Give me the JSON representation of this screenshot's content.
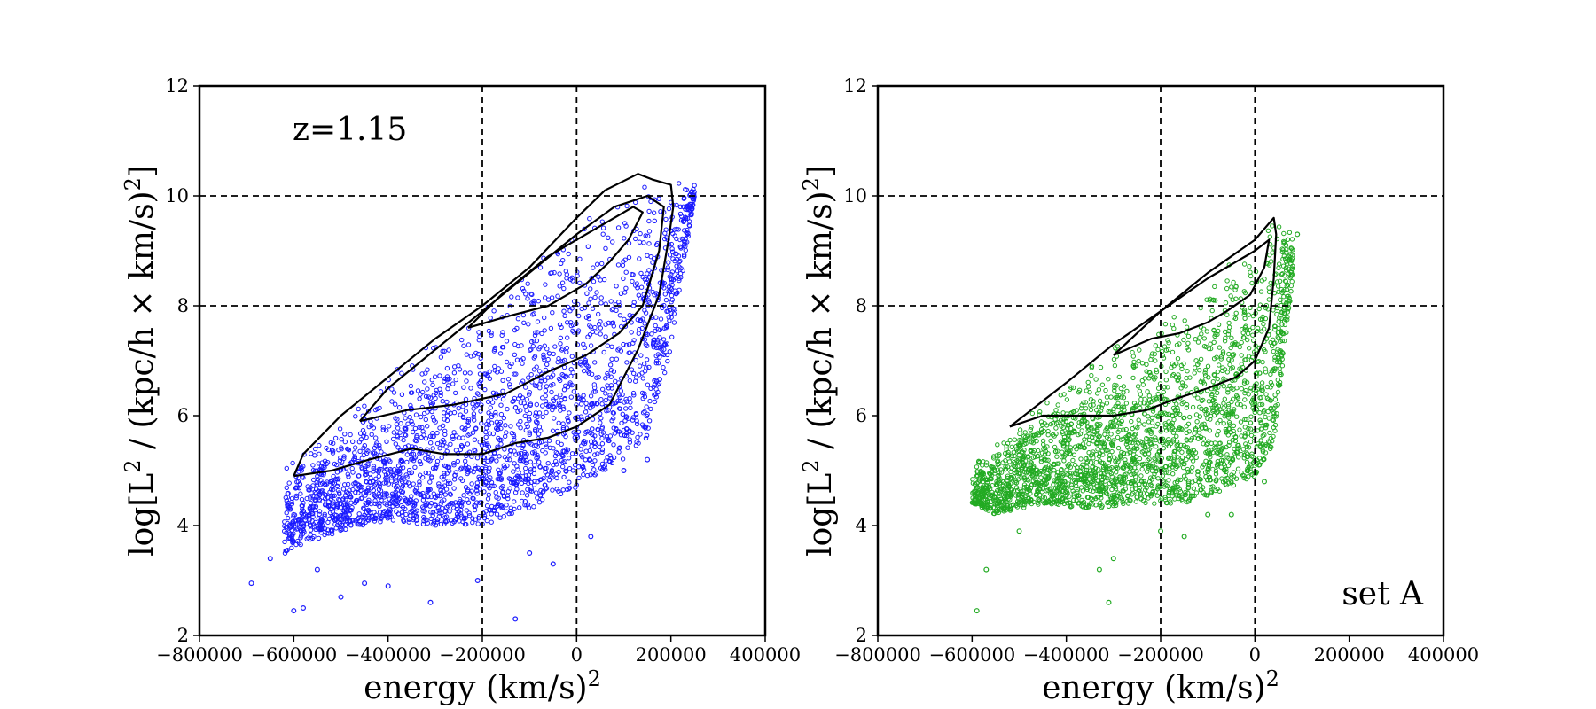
{
  "chart_data": [
    {
      "type": "scatter",
      "annotation": "z=1.15",
      "xlabel": "energy   (km/s)",
      "xlabel_sup": "2",
      "ylabel_pre": "log[L",
      "ylabel_sup1": "2",
      "ylabel_mid": " / (kpc/h × km/s)",
      "ylabel_sup2": "2",
      "ylabel_post": "]",
      "xlim": [
        -800000,
        400000
      ],
      "ylim": [
        2,
        12
      ],
      "xticks": [
        -800000,
        -600000,
        -400000,
        -200000,
        0,
        200000,
        400000
      ],
      "xtick_labels": [
        "−800000",
        "−600000",
        "−400000",
        "−200000",
        "0",
        "200000",
        "400000"
      ],
      "yticks": [
        2,
        4,
        6,
        8,
        10,
        12
      ],
      "ytick_labels": [
        "2",
        "4",
        "6",
        "8",
        "10",
        "12"
      ],
      "reference_lines": {
        "vertical": [
          -200000,
          0
        ],
        "horizontal": [
          8,
          10
        ]
      },
      "series": [
        {
          "name": "particles",
          "color": "#1a1aff",
          "envelope": {
            "upper": [
              [
                -620000,
                5.2
              ],
              [
                -500000,
                6.0
              ],
              [
                -400000,
                6.8
              ],
              [
                -300000,
                7.4
              ],
              [
                -200000,
                8.0
              ],
              [
                -100000,
                8.7
              ],
              [
                0,
                9.6
              ],
              [
                100000,
                10.1
              ],
              [
                150000,
                10.4
              ],
              [
                200000,
                10.3
              ],
              [
                250000,
                10.2
              ]
            ],
            "lower": [
              [
                -690000,
                2.9
              ],
              [
                -600000,
                3.6
              ],
              [
                -500000,
                3.9
              ],
              [
                -400000,
                4.1
              ],
              [
                -300000,
                4.0
              ],
              [
                -200000,
                4.0
              ],
              [
                -100000,
                4.3
              ],
              [
                0,
                4.7
              ],
              [
                100000,
                5.2
              ],
              [
                150000,
                5.6
              ],
              [
                200000,
                7.2
              ],
              [
                250000,
                10.0
              ]
            ]
          },
          "outliers": [
            [
              -690000,
              2.95
            ],
            [
              -650000,
              3.4
            ],
            [
              -600000,
              2.45
            ],
            [
              -580000,
              2.5
            ],
            [
              -550000,
              3.2
            ],
            [
              -500000,
              2.7
            ],
            [
              -450000,
              2.95
            ],
            [
              -400000,
              2.9
            ],
            [
              -310000,
              2.6
            ],
            [
              -210000,
              3.0
            ],
            [
              -130000,
              2.3
            ],
            [
              -100000,
              3.5
            ],
            [
              -50000,
              3.3
            ],
            [
              30000,
              3.8
            ],
            [
              100000,
              5.0
            ],
            [
              150000,
              5.2
            ]
          ]
        }
      ],
      "contours": [
        [
          [
            -600000,
            4.9
          ],
          [
            -520000,
            5.0
          ],
          [
            -440000,
            5.2
          ],
          [
            -350000,
            5.4
          ],
          [
            -280000,
            5.3
          ],
          [
            -200000,
            5.3
          ],
          [
            -130000,
            5.5
          ],
          [
            -60000,
            5.6
          ],
          [
            0,
            5.8
          ],
          [
            70000,
            6.2
          ],
          [
            130000,
            7.2
          ],
          [
            175000,
            8.2
          ],
          [
            195000,
            9.2
          ],
          [
            205000,
            9.8
          ],
          [
            200000,
            10.2
          ],
          [
            160000,
            10.3
          ],
          [
            130000,
            10.4
          ],
          [
            60000,
            10.1
          ],
          [
            0,
            9.6
          ],
          [
            -100000,
            8.7
          ],
          [
            -200000,
            8.0
          ],
          [
            -300000,
            7.4
          ],
          [
            -400000,
            6.7
          ],
          [
            -500000,
            6.0
          ],
          [
            -580000,
            5.3
          ],
          [
            -600000,
            4.9
          ]
        ],
        [
          [
            -460000,
            5.9
          ],
          [
            -360000,
            6.1
          ],
          [
            -260000,
            6.2
          ],
          [
            -150000,
            6.4
          ],
          [
            -60000,
            6.8
          ],
          [
            20000,
            7.1
          ],
          [
            90000,
            7.5
          ],
          [
            140000,
            8.0
          ],
          [
            175000,
            9.0
          ],
          [
            185000,
            9.8
          ],
          [
            150000,
            10.0
          ],
          [
            80000,
            9.8
          ],
          [
            0,
            9.3
          ],
          [
            -100000,
            8.6
          ],
          [
            -200000,
            7.9
          ],
          [
            -300000,
            7.2
          ],
          [
            -400000,
            6.5
          ],
          [
            -460000,
            5.9
          ]
        ],
        [
          [
            -230000,
            7.6
          ],
          [
            -150000,
            7.8
          ],
          [
            -60000,
            8.0
          ],
          [
            20000,
            8.4
          ],
          [
            70000,
            8.8
          ],
          [
            110000,
            9.2
          ],
          [
            140000,
            9.7
          ],
          [
            120000,
            9.8
          ],
          [
            40000,
            9.4
          ],
          [
            -60000,
            8.9
          ],
          [
            -160000,
            8.2
          ],
          [
            -230000,
            7.6
          ]
        ]
      ]
    },
    {
      "type": "scatter",
      "annotation": "set A",
      "xlabel": "energy   (km/s)",
      "xlabel_sup": "2",
      "ylabel_pre": "log[L",
      "ylabel_sup1": "2",
      "ylabel_mid": " / (kpc/h × km/s)",
      "ylabel_sup2": "2",
      "ylabel_post": "]",
      "xlim": [
        -800000,
        400000
      ],
      "ylim": [
        2,
        12
      ],
      "xticks": [
        -800000,
        -600000,
        -400000,
        -200000,
        0,
        200000,
        400000
      ],
      "xtick_labels": [
        "−800000",
        "−600000",
        "−400000",
        "−200000",
        "0",
        "200000",
        "400000"
      ],
      "yticks": [
        2,
        4,
        6,
        8,
        10,
        12
      ],
      "ytick_labels": [
        "2",
        "4",
        "6",
        "8",
        "10",
        "12"
      ],
      "reference_lines": {
        "vertical": [
          -200000,
          0
        ],
        "horizontal": [
          8,
          10
        ]
      },
      "series": [
        {
          "name": "particles",
          "color": "#22aa22",
          "envelope": {
            "upper": [
              [
                -600000,
                5.1
              ],
              [
                -500000,
                5.9
              ],
              [
                -400000,
                6.6
              ],
              [
                -300000,
                7.3
              ],
              [
                -200000,
                7.9
              ],
              [
                -100000,
                8.5
              ],
              [
                0,
                9.1
              ],
              [
                40000,
                9.6
              ],
              [
                80000,
                9.3
              ]
            ],
            "lower": [
              [
                -620000,
                4.5
              ],
              [
                -550000,
                4.2
              ],
              [
                -450000,
                4.4
              ],
              [
                -350000,
                4.3
              ],
              [
                -250000,
                4.4
              ],
              [
                -150000,
                4.4
              ],
              [
                -50000,
                4.7
              ],
              [
                0,
                4.9
              ],
              [
                40000,
                5.5
              ],
              [
                80000,
                8.5
              ]
            ]
          },
          "outliers": [
            [
              -590000,
              2.45
            ],
            [
              -570000,
              3.2
            ],
            [
              -500000,
              3.9
            ],
            [
              -330000,
              3.2
            ],
            [
              -310000,
              2.6
            ],
            [
              -300000,
              3.4
            ],
            [
              -200000,
              3.9
            ],
            [
              -150000,
              3.8
            ],
            [
              -100000,
              4.2
            ],
            [
              -50000,
              4.2
            ],
            [
              20000,
              4.8
            ],
            [
              90000,
              9.3
            ]
          ]
        }
      ],
      "contours": [
        [
          [
            -520000,
            5.8
          ],
          [
            -450000,
            6.0
          ],
          [
            -380000,
            6.0
          ],
          [
            -300000,
            6.0
          ],
          [
            -230000,
            6.1
          ],
          [
            -170000,
            6.3
          ],
          [
            -100000,
            6.5
          ],
          [
            -40000,
            6.7
          ],
          [
            0,
            7.0
          ],
          [
            30000,
            7.6
          ],
          [
            40000,
            8.5
          ],
          [
            45000,
            9.3
          ],
          [
            40000,
            9.6
          ],
          [
            0,
            9.2
          ],
          [
            -100000,
            8.6
          ],
          [
            -200000,
            7.9
          ],
          [
            -300000,
            7.3
          ],
          [
            -400000,
            6.6
          ],
          [
            -520000,
            5.8
          ]
        ],
        [
          [
            -300000,
            7.1
          ],
          [
            -220000,
            7.4
          ],
          [
            -160000,
            7.5
          ],
          [
            -100000,
            7.7
          ],
          [
            -60000,
            7.9
          ],
          [
            -10000,
            8.2
          ],
          [
            20000,
            8.7
          ],
          [
            30000,
            9.2
          ],
          [
            0,
            9.0
          ],
          [
            -100000,
            8.5
          ],
          [
            -200000,
            7.9
          ],
          [
            -300000,
            7.1
          ]
        ]
      ]
    }
  ]
}
